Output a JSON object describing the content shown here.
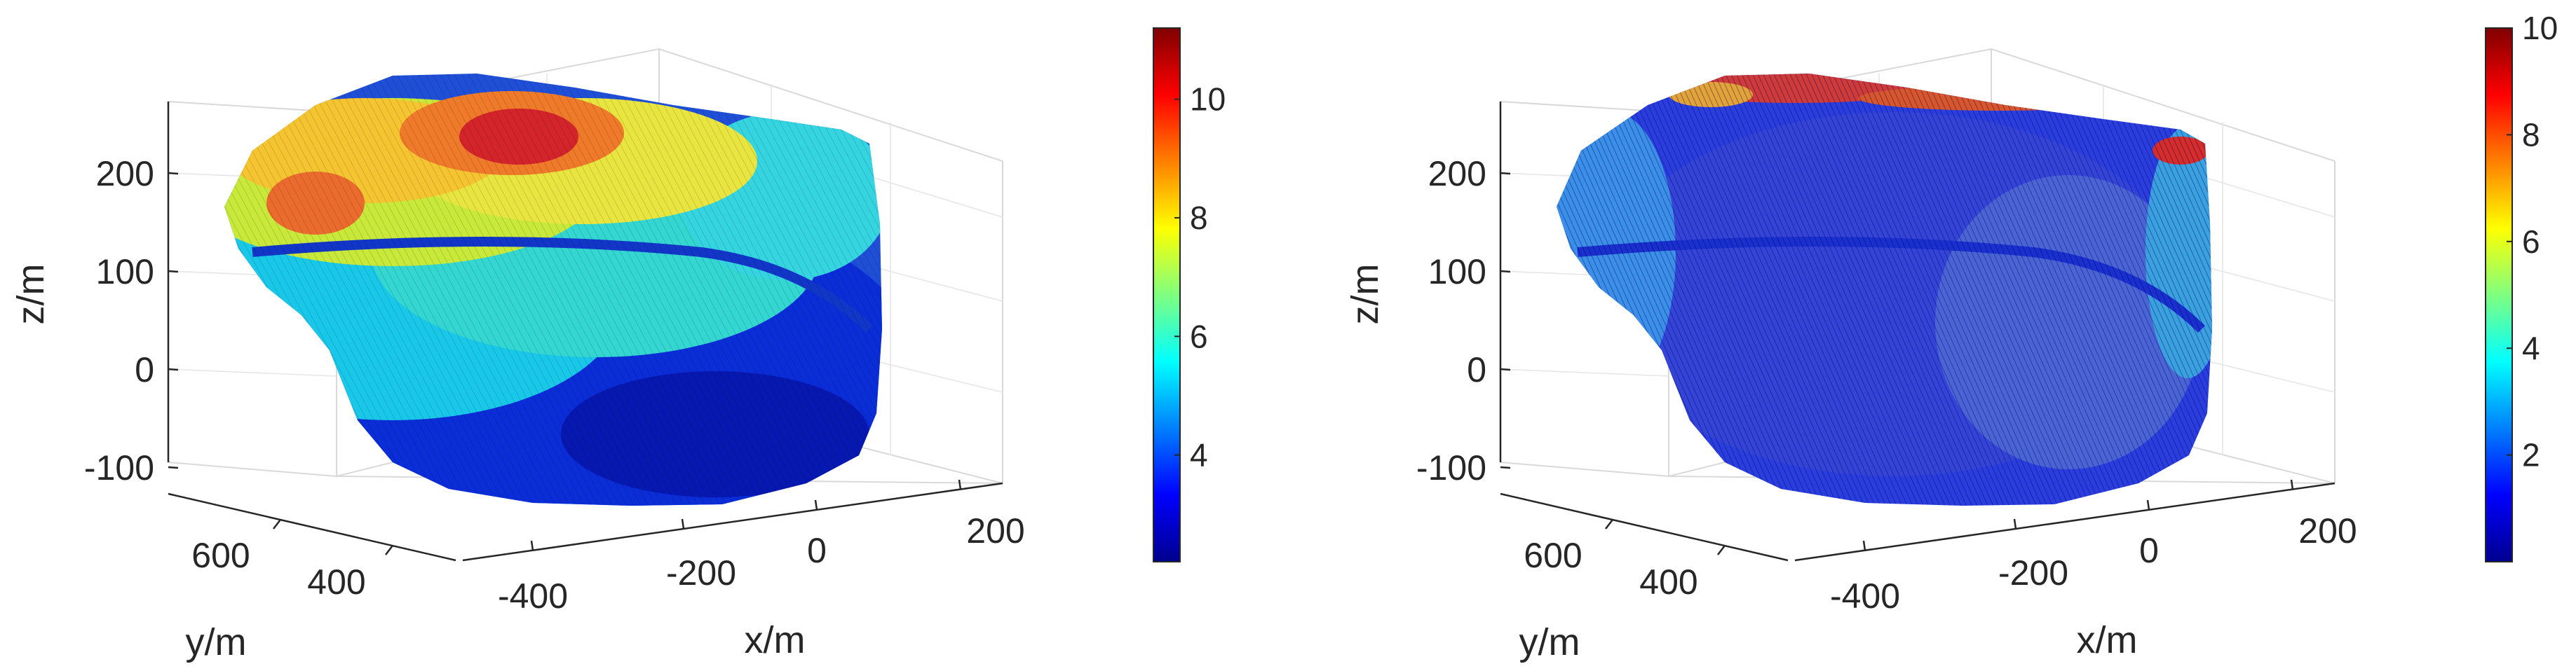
{
  "chart_data": [
    {
      "type": "scatter",
      "subtype": "3d-point-cloud",
      "xlabel": "x/m",
      "ylabel": "y/m",
      "zlabel": "z/m",
      "xticks": [
        "-400",
        "-200",
        "0",
        "200"
      ],
      "yticks": [
        "600",
        "400"
      ],
      "zticks": [
        "200",
        "100",
        "0",
        "-100"
      ],
      "xlim": [
        -450,
        250
      ],
      "ylim": [
        300,
        750
      ],
      "zlim": [
        -130,
        280
      ],
      "grid": true,
      "colorbar": {
        "ticks": [
          "10",
          "8",
          "6",
          "4"
        ],
        "range": [
          2.2,
          11.2
        ],
        "colormap": "jet"
      }
    },
    {
      "type": "scatter",
      "subtype": "3d-point-cloud",
      "xlabel": "x/m",
      "ylabel": "y/m",
      "zlabel": "z/m",
      "xticks": [
        "-400",
        "-200",
        "0",
        "200"
      ],
      "yticks": [
        "600",
        "400"
      ],
      "zticks": [
        "200",
        "100",
        "0",
        "-100"
      ],
      "xlim": [
        -450,
        250
      ],
      "ylim": [
        300,
        750
      ],
      "zlim": [
        -130,
        280
      ],
      "grid": true,
      "colorbar": {
        "ticks": [
          "10",
          "8",
          "6",
          "4",
          "2"
        ],
        "range": [
          0,
          10
        ],
        "colormap": "jet"
      }
    }
  ]
}
